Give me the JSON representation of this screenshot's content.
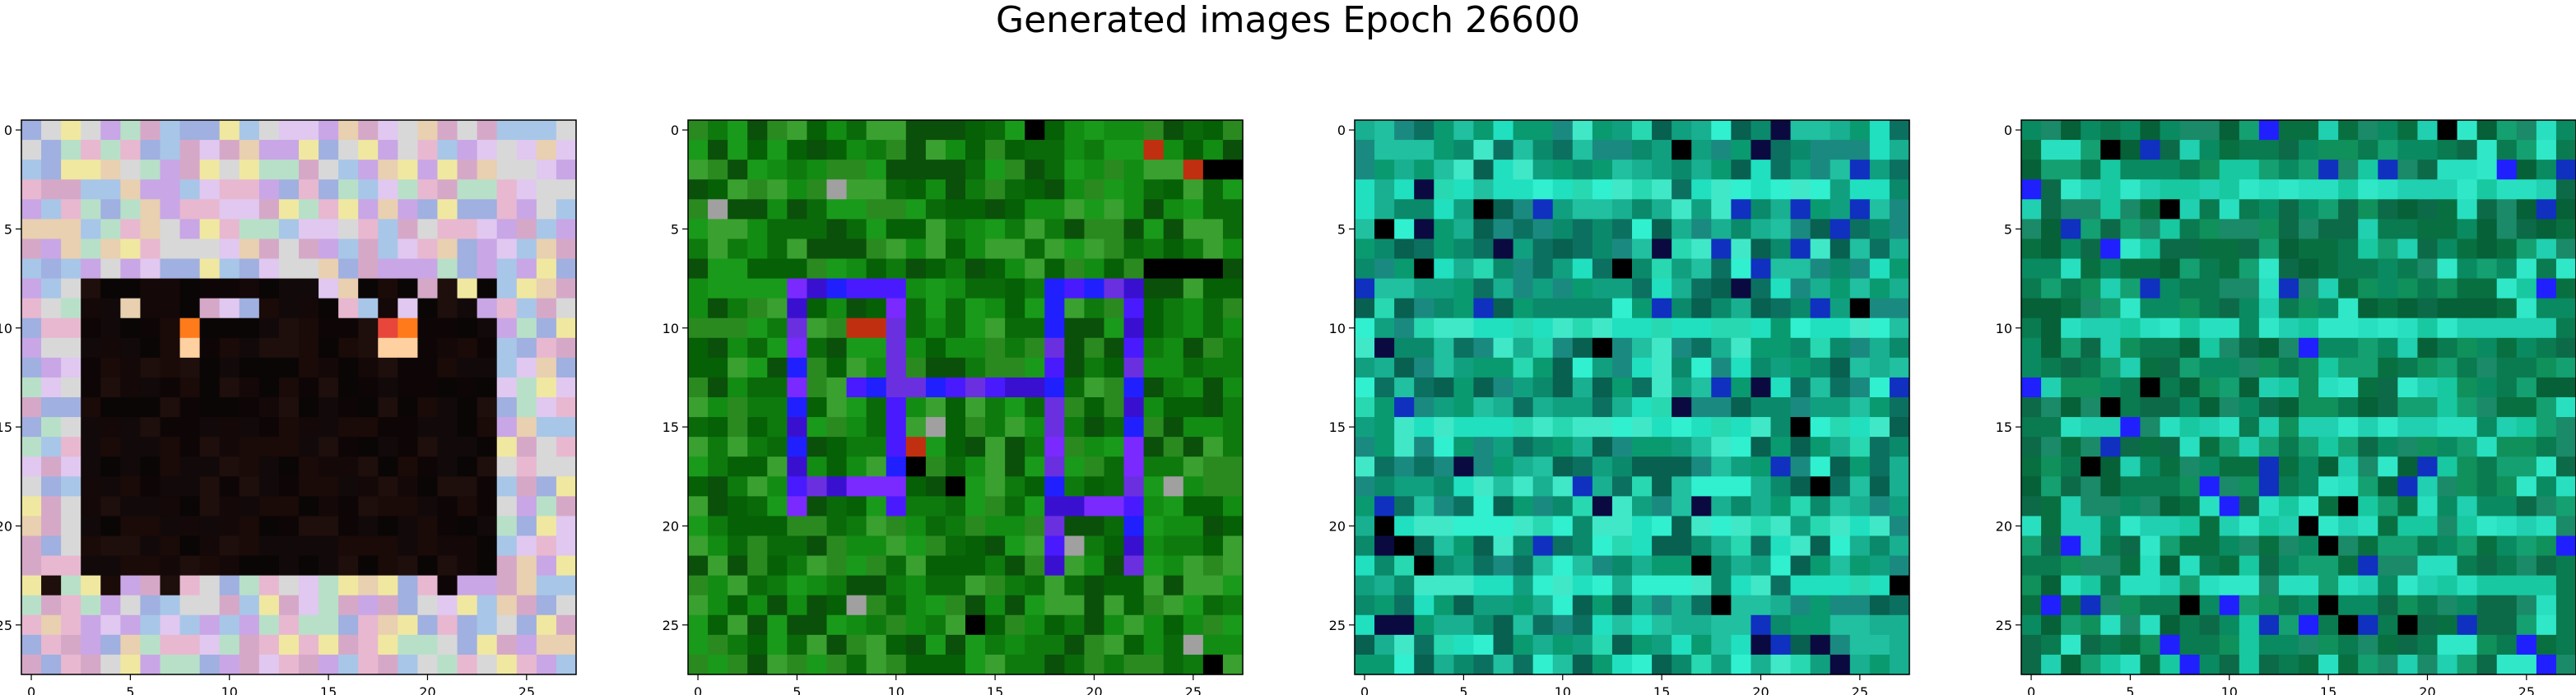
{
  "figure": {
    "title": "Generated images Epoch 26600"
  },
  "chart_data": [
    {
      "type": "heatmap",
      "subtype": "rgb-image",
      "title": "",
      "xlabel": "",
      "ylabel": "",
      "shape": [
        28,
        28
      ],
      "xlim": [
        -0.5,
        27.5
      ],
      "ylim": [
        27.5,
        -0.5
      ],
      "x_ticks": [
        0,
        5,
        10,
        15,
        20,
        25
      ],
      "y_ticks": [
        0,
        5,
        10,
        15,
        20,
        25
      ],
      "style": "pastel-noise border with dark center and orange highlights",
      "palette": {
        "border": [
          "#c9a6e6",
          "#a8c6e8",
          "#e8d0b0",
          "#d6a8c8",
          "#b8e0c8",
          "#e0c8f0",
          "#f0e8a0",
          "#a0b0e0",
          "#d8d8d8",
          "#e8b8d0"
        ],
        "dark": [
          "#0e0606",
          "#140808",
          "#1a0a08",
          "#0a0606",
          "#120a0a",
          "#1e0e0c"
        ],
        "accent": [
          "#ff7a1a",
          "#e8463a",
          "#ffd0a0"
        ]
      },
      "grid": false
    },
    {
      "type": "heatmap",
      "subtype": "rgb-image",
      "title": "",
      "xlabel": "",
      "ylabel": "",
      "shape": [
        28,
        28
      ],
      "xlim": [
        -0.5,
        27.5
      ],
      "ylim": [
        27.5,
        -0.5
      ],
      "x_ticks": [
        0,
        5,
        10,
        15,
        20,
        25
      ],
      "y_ticks": [
        0,
        5,
        10,
        15,
        20,
        25
      ],
      "style": "green noise with blue/violet rectangular pattern",
      "palette": {
        "base": [
          "#0a6a0a",
          "#128c12",
          "#0e7a0e",
          "#1a9a1a",
          "#066006",
          "#2a8a20",
          "#0a500a",
          "#3aa030"
        ],
        "pattern": [
          "#4a1aff",
          "#7a2aff",
          "#2020ff",
          "#6a30e0",
          "#3a10d0"
        ],
        "accent": [
          "#c03010",
          "#000000",
          "#a0a0a0"
        ]
      },
      "grid": false
    },
    {
      "type": "heatmap",
      "subtype": "rgb-image",
      "title": "",
      "xlabel": "",
      "ylabel": "",
      "shape": [
        28,
        28
      ],
      "xlim": [
        -0.5,
        27.5
      ],
      "ylim": [
        27.5,
        -0.5
      ],
      "x_ticks": [
        0,
        5,
        10,
        15,
        20,
        25
      ],
      "y_ticks": [
        0,
        5,
        10,
        15,
        20,
        25
      ],
      "style": "teal-cyan noise with bright horizontal bands",
      "palette": {
        "base": [
          "#0a8a6a",
          "#10a080",
          "#0c7060",
          "#18b090",
          "#086050",
          "#20c0a0",
          "#0a9a70",
          "#1a8a80"
        ],
        "band": [
          "#20e0c0",
          "#30f0d0",
          "#28d8b0",
          "#40e8c8"
        ],
        "accent": [
          "#1030c0",
          "#0a0a40",
          "#000000"
        ]
      },
      "grid": false
    },
    {
      "type": "heatmap",
      "subtype": "rgb-image",
      "title": "",
      "xlabel": "",
      "ylabel": "",
      "shape": [
        28,
        28
      ],
      "xlim": [
        -0.5,
        27.5
      ],
      "ylim": [
        27.5,
        -0.5
      ],
      "x_ticks": [
        0,
        5,
        10,
        15,
        20,
        25
      ],
      "y_ticks": [
        0,
        5,
        10,
        15,
        20,
        25
      ],
      "style": "darker teal-green noise with bright horizontal bands",
      "palette": {
        "base": [
          "#0a7a50",
          "#0c6a48",
          "#10905a",
          "#087040",
          "#0a8a60",
          "#14a070",
          "#066038",
          "#1a8a68"
        ],
        "band": [
          "#20d0b0",
          "#28e0c0",
          "#18c8a0",
          "#30e8c8"
        ],
        "accent": [
          "#1030c0",
          "#2020ff",
          "#000000"
        ]
      },
      "grid": false
    }
  ]
}
